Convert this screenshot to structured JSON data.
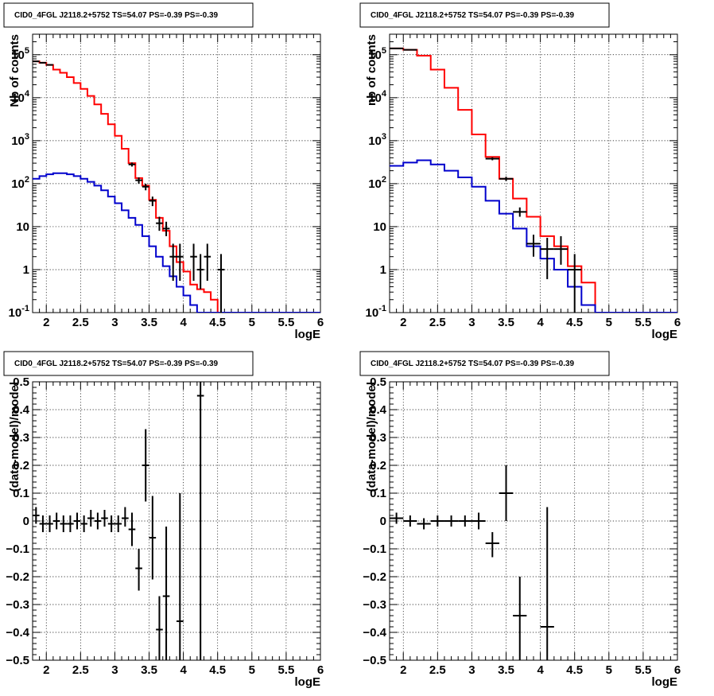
{
  "chart_data": [
    {
      "type": "line",
      "title": "CID0_4FGL J2118.2+5752 TS=54.07 PS=-0.39 PS=-0.39",
      "xlabel": "logE",
      "ylabel": "Nb of counts",
      "xlim": [
        1.8,
        6.0
      ],
      "ylim": [
        0.1,
        300000
      ],
      "yscale": "log",
      "grid": true,
      "xticks": [
        "2",
        "2.5",
        "3",
        "3.5",
        "4",
        "4.5",
        "5",
        "5.5",
        "6"
      ],
      "xtick_values": [
        2,
        2.5,
        3,
        3.5,
        4,
        4.5,
        5,
        5.5,
        6
      ],
      "yticks": [
        "10^-1",
        "1",
        "10",
        "10^2",
        "10^3",
        "10^4",
        "10^5"
      ],
      "ytick_values": [
        0.1,
        1,
        10,
        100,
        1000,
        10000,
        100000
      ],
      "series": [
        {
          "color": "#ff0000",
          "style": "step",
          "edges": [
            1.8,
            1.9,
            2.0,
            2.1,
            2.2,
            2.3,
            2.4,
            2.5,
            2.6,
            2.7,
            2.8,
            2.9,
            3.0,
            3.1,
            3.2,
            3.3,
            3.4,
            3.5,
            3.6,
            3.7,
            3.8,
            3.9,
            4.0,
            4.1,
            4.2,
            4.3,
            4.4,
            4.5,
            4.6,
            4.7,
            4.8,
            4.9,
            5.0,
            5.1,
            5.2,
            5.3,
            5.4,
            5.5,
            5.6,
            5.7,
            5.8,
            5.9,
            6.0
          ],
          "values": [
            70000,
            65000,
            58000,
            45000,
            38000,
            30000,
            22000,
            16000,
            11000,
            7000,
            4200,
            2400,
            1300,
            650,
            300,
            135,
            90,
            42,
            16,
            8,
            3.5,
            1.5,
            0.9,
            0.45,
            0.35,
            0.3,
            0.2,
            0.1,
            0.09,
            0.09,
            0.09,
            0.09,
            0.09,
            0.09,
            0.09,
            0.09,
            0.09,
            0.09,
            0.09,
            0.09,
            0.09,
            0.09
          ]
        },
        {
          "color": "#0000cc",
          "style": "step",
          "edges": [
            1.8,
            1.9,
            2.0,
            2.1,
            2.2,
            2.3,
            2.4,
            2.5,
            2.6,
            2.7,
            2.8,
            2.9,
            3.0,
            3.1,
            3.2,
            3.3,
            3.4,
            3.5,
            3.6,
            3.7,
            3.8,
            3.9,
            4.0,
            4.1,
            4.2,
            4.3,
            4.4,
            4.5,
            4.6,
            4.7,
            4.8,
            4.9,
            5.0,
            5.1,
            5.2,
            5.3,
            5.4,
            5.5,
            5.6,
            5.7,
            5.8,
            5.9,
            6.0
          ],
          "values": [
            130,
            150,
            165,
            175,
            175,
            165,
            150,
            130,
            110,
            90,
            70,
            50,
            35,
            24,
            16,
            11,
            6,
            3.5,
            2,
            1.2,
            0.7,
            0.4,
            0.25,
            0.15,
            0.1,
            0.09,
            0.09,
            0.09,
            0.09,
            0.09,
            0.09,
            0.09,
            0.09,
            0.09,
            0.09,
            0.09,
            0.09,
            0.09,
            0.09,
            0.09,
            0.09,
            0.09
          ]
        },
        {
          "color": "#000000",
          "style": "errorbar",
          "points": [
            {
              "x": 1.85,
              "y": 70000,
              "lo": 69000,
              "hi": 71000,
              "xw": 0.05
            },
            {
              "x": 1.95,
              "y": 65000,
              "lo": 64000,
              "hi": 66000,
              "xw": 0.05
            },
            {
              "x": 2.05,
              "y": 58000,
              "lo": 57000,
              "hi": 59000,
              "xw": 0.05
            },
            {
              "x": 3.25,
              "y": 280,
              "lo": 250,
              "hi": 310,
              "xw": 0.05
            },
            {
              "x": 3.35,
              "y": 120,
              "lo": 100,
              "hi": 140,
              "xw": 0.05
            },
            {
              "x": 3.45,
              "y": 85,
              "lo": 70,
              "hi": 100,
              "xw": 0.05
            },
            {
              "x": 3.55,
              "y": 40,
              "lo": 30,
              "hi": 50,
              "xw": 0.05
            },
            {
              "x": 3.65,
              "y": 12,
              "lo": 8,
              "hi": 17,
              "xw": 0.05
            },
            {
              "x": 3.75,
              "y": 9,
              "lo": 6,
              "hi": 13,
              "xw": 0.05
            },
            {
              "x": 3.85,
              "y": 2,
              "lo": 0.55,
              "hi": 4,
              "xw": 0.05
            },
            {
              "x": 3.95,
              "y": 2,
              "lo": 0.55,
              "hi": 4,
              "xw": 0.05
            },
            {
              "x": 4.15,
              "y": 2,
              "lo": 0.55,
              "hi": 4,
              "xw": 0.05
            },
            {
              "x": 4.25,
              "y": 1,
              "lo": 0.35,
              "hi": 2.3,
              "xw": 0.05
            },
            {
              "x": 4.35,
              "y": 2,
              "lo": 0.55,
              "hi": 4,
              "xw": 0.05
            },
            {
              "x": 4.55,
              "y": 1,
              "lo": 0.1,
              "hi": 2.3,
              "xw": 0.05
            }
          ]
        }
      ]
    },
    {
      "type": "line",
      "title": "CID0_4FGL J2118.2+5752 TS=54.07 PS=-0.39 PS=-0.39",
      "xlabel": "logE",
      "ylabel": "nb of counts",
      "xlim": [
        1.8,
        6.0
      ],
      "ylim": [
        0.1,
        300000
      ],
      "yscale": "log",
      "grid": true,
      "xticks": [
        "2",
        "2.5",
        "3",
        "3.5",
        "4",
        "4.5",
        "5",
        "5.5",
        "6"
      ],
      "xtick_values": [
        2,
        2.5,
        3,
        3.5,
        4,
        4.5,
        5,
        5.5,
        6
      ],
      "yticks": [
        "10^-1",
        "1",
        "10",
        "10^2",
        "10^3",
        "10^4",
        "10^5"
      ],
      "ytick_values": [
        0.1,
        1,
        10,
        100,
        1000,
        10000,
        100000
      ],
      "series": [
        {
          "color": "#ff0000",
          "style": "step",
          "edges": [
            1.8,
            2.0,
            2.2,
            2.4,
            2.6,
            2.8,
            3.0,
            3.2,
            3.4,
            3.6,
            3.8,
            4.0,
            4.2,
            4.4,
            4.6,
            4.8,
            5.0,
            5.2,
            5.4,
            5.6,
            5.8,
            6.0
          ],
          "values": [
            140000,
            130000,
            95000,
            45000,
            17000,
            5200,
            1400,
            420,
            130,
            45,
            17,
            6,
            3.5,
            1.2,
            0.5,
            0.09,
            0.09,
            0.09,
            0.09,
            0.09,
            0.09
          ]
        },
        {
          "color": "#0000cc",
          "style": "step",
          "edges": [
            1.8,
            2.0,
            2.2,
            2.4,
            2.6,
            2.8,
            3.0,
            3.2,
            3.4,
            3.6,
            3.8,
            4.0,
            4.2,
            4.4,
            4.6,
            4.8,
            5.0,
            5.2,
            5.4,
            5.6,
            5.8,
            6.0
          ],
          "values": [
            260,
            310,
            350,
            280,
            200,
            140,
            85,
            40,
            20,
            9,
            3.5,
            1.8,
            1,
            0.4,
            0.15,
            0.09,
            0.09,
            0.09,
            0.09,
            0.09,
            0.09
          ]
        },
        {
          "color": "#000000",
          "style": "errorbar",
          "points": [
            {
              "x": 1.9,
              "y": 140000,
              "lo": 139000,
              "hi": 141000,
              "xw": 0.1
            },
            {
              "x": 2.1,
              "y": 130000,
              "lo": 129000,
              "hi": 131000,
              "xw": 0.1
            },
            {
              "x": 3.3,
              "y": 380,
              "lo": 350,
              "hi": 410,
              "xw": 0.1
            },
            {
              "x": 3.5,
              "y": 130,
              "lo": 115,
              "hi": 145,
              "xw": 0.1
            },
            {
              "x": 3.7,
              "y": 22,
              "lo": 17,
              "hi": 28,
              "xw": 0.1
            },
            {
              "x": 3.9,
              "y": 4,
              "lo": 2,
              "hi": 6.5,
              "xw": 0.1
            },
            {
              "x": 4.1,
              "y": 3,
              "lo": 0.6,
              "hi": 5.5,
              "xw": 0.1
            },
            {
              "x": 4.3,
              "y": 3,
              "lo": 1.3,
              "hi": 6,
              "xw": 0.1
            },
            {
              "x": 4.5,
              "y": 1,
              "lo": 0.1,
              "hi": 2.3,
              "xw": 0.1
            }
          ]
        }
      ]
    },
    {
      "type": "scatter",
      "title": "CID0_4FGL J2118.2+5752 TS=54.07 PS=-0.39 PS=-0.39",
      "xlabel": "logE",
      "ylabel": "(data-model)/model",
      "xlim": [
        1.8,
        6.0
      ],
      "ylim": [
        -0.5,
        0.5
      ],
      "yscale": "linear",
      "grid": true,
      "xticks": [
        "2",
        "2.5",
        "3",
        "3.5",
        "4",
        "4.5",
        "5",
        "5.5",
        "6"
      ],
      "xtick_values": [
        2,
        2.5,
        3,
        3.5,
        4,
        4.5,
        5,
        5.5,
        6
      ],
      "yticks": [
        "−0.5",
        "−0.4",
        "−0.3",
        "−0.2",
        "−0.1",
        "0",
        "0.1",
        "0.2",
        "0.3",
        "0.4",
        "0.5"
      ],
      "ytick_values": [
        -0.5,
        -0.4,
        -0.3,
        -0.2,
        -0.1,
        0,
        0.1,
        0.2,
        0.3,
        0.4,
        0.5
      ],
      "series": [
        {
          "color": "#000000",
          "style": "errorbar",
          "points": [
            {
              "x": 1.85,
              "y": 0.02,
              "lo": -0.01,
              "hi": 0.05,
              "xw": 0.05
            },
            {
              "x": 1.95,
              "y": -0.01,
              "lo": -0.04,
              "hi": 0.02,
              "xw": 0.05
            },
            {
              "x": 2.05,
              "y": -0.01,
              "lo": -0.04,
              "hi": 0.02,
              "xw": 0.05
            },
            {
              "x": 2.15,
              "y": 0.0,
              "lo": -0.03,
              "hi": 0.03,
              "xw": 0.05
            },
            {
              "x": 2.25,
              "y": -0.01,
              "lo": -0.04,
              "hi": 0.02,
              "xw": 0.05
            },
            {
              "x": 2.35,
              "y": -0.01,
              "lo": -0.04,
              "hi": 0.02,
              "xw": 0.05
            },
            {
              "x": 2.45,
              "y": 0.0,
              "lo": -0.03,
              "hi": 0.03,
              "xw": 0.05
            },
            {
              "x": 2.55,
              "y": -0.01,
              "lo": -0.04,
              "hi": 0.02,
              "xw": 0.05
            },
            {
              "x": 2.65,
              "y": 0.01,
              "lo": -0.02,
              "hi": 0.04,
              "xw": 0.05
            },
            {
              "x": 2.75,
              "y": 0.0,
              "lo": -0.03,
              "hi": 0.03,
              "xw": 0.05
            },
            {
              "x": 2.85,
              "y": 0.01,
              "lo": -0.02,
              "hi": 0.04,
              "xw": 0.05
            },
            {
              "x": 2.95,
              "y": -0.01,
              "lo": -0.04,
              "hi": 0.02,
              "xw": 0.05
            },
            {
              "x": 3.05,
              "y": -0.01,
              "lo": -0.04,
              "hi": 0.02,
              "xw": 0.05
            },
            {
              "x": 3.15,
              "y": 0.01,
              "lo": -0.02,
              "hi": 0.05,
              "xw": 0.05
            },
            {
              "x": 3.25,
              "y": -0.03,
              "lo": -0.09,
              "hi": 0.03,
              "xw": 0.05
            },
            {
              "x": 3.35,
              "y": -0.17,
              "lo": -0.25,
              "hi": -0.1,
              "xw": 0.05
            },
            {
              "x": 3.45,
              "y": 0.2,
              "lo": 0.07,
              "hi": 0.33,
              "xw": 0.05
            },
            {
              "x": 3.55,
              "y": -0.06,
              "lo": -0.21,
              "hi": 0.09,
              "xw": 0.05
            },
            {
              "x": 3.65,
              "y": -0.39,
              "lo": -0.5,
              "hi": -0.27,
              "xw": 0.05
            },
            {
              "x": 3.75,
              "y": -0.27,
              "lo": -0.5,
              "hi": -0.02,
              "xw": 0.05
            },
            {
              "x": 3.95,
              "y": -0.36,
              "lo": -0.5,
              "hi": 0.1,
              "xw": 0.05
            },
            {
              "x": 4.25,
              "y": 0.45,
              "lo": -0.5,
              "hi": 0.5,
              "xw": 0.05
            }
          ]
        }
      ]
    },
    {
      "type": "scatter",
      "title": "CID0_4FGL J2118.2+5752 TS=54.07 PS=-0.39 PS=-0.39",
      "xlabel": "logE",
      "ylabel": "(data-model)/model",
      "xlim": [
        1.8,
        6.0
      ],
      "ylim": [
        -0.5,
        0.5
      ],
      "yscale": "linear",
      "grid": true,
      "xticks": [
        "2",
        "2.5",
        "3",
        "3.5",
        "4",
        "4.5",
        "5",
        "5.5",
        "6"
      ],
      "xtick_values": [
        2,
        2.5,
        3,
        3.5,
        4,
        4.5,
        5,
        5.5,
        6
      ],
      "yticks": [
        "−0.5",
        "−0.4",
        "−0.3",
        "−0.2",
        "−0.1",
        "0",
        "0.1",
        "0.2",
        "0.3",
        "0.4",
        "0.5"
      ],
      "ytick_values": [
        -0.5,
        -0.4,
        -0.3,
        -0.2,
        -0.1,
        0,
        0.1,
        0.2,
        0.3,
        0.4,
        0.5
      ],
      "series": [
        {
          "color": "#000000",
          "style": "errorbar",
          "points": [
            {
              "x": 1.9,
              "y": 0.01,
              "lo": -0.01,
              "hi": 0.03,
              "xw": 0.1
            },
            {
              "x": 2.1,
              "y": 0.0,
              "lo": -0.02,
              "hi": 0.02,
              "xw": 0.1
            },
            {
              "x": 2.3,
              "y": -0.01,
              "lo": -0.03,
              "hi": 0.01,
              "xw": 0.1
            },
            {
              "x": 2.5,
              "y": 0.0,
              "lo": -0.02,
              "hi": 0.02,
              "xw": 0.1
            },
            {
              "x": 2.7,
              "y": 0.0,
              "lo": -0.02,
              "hi": 0.02,
              "xw": 0.1
            },
            {
              "x": 2.9,
              "y": 0.0,
              "lo": -0.02,
              "hi": 0.02,
              "xw": 0.1
            },
            {
              "x": 3.1,
              "y": 0.0,
              "lo": -0.03,
              "hi": 0.03,
              "xw": 0.1
            },
            {
              "x": 3.3,
              "y": -0.08,
              "lo": -0.13,
              "hi": -0.04,
              "xw": 0.1
            },
            {
              "x": 3.5,
              "y": 0.1,
              "lo": 0.0,
              "hi": 0.2,
              "xw": 0.1
            },
            {
              "x": 3.7,
              "y": -0.34,
              "lo": -0.5,
              "hi": -0.2,
              "xw": 0.1
            },
            {
              "x": 4.1,
              "y": -0.38,
              "lo": -0.5,
              "hi": 0.05,
              "xw": 0.1
            }
          ]
        }
      ]
    }
  ]
}
